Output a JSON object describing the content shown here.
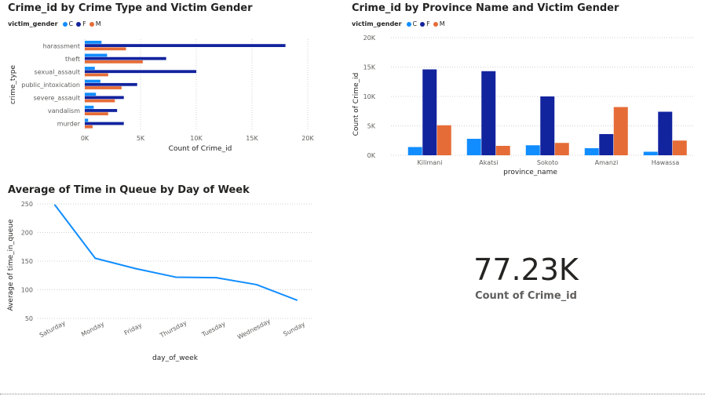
{
  "colors": {
    "C": "#118dff",
    "F": "#12239e",
    "M": "#e66c37",
    "line": "#118dff",
    "grid": "#d0d0d0",
    "text": "#605e5c"
  },
  "chart_data": [
    {
      "type": "bar",
      "orientation": "horizontal",
      "title": "Crime_id by Crime Type and Victim Gender",
      "legend_title": "victim_gender",
      "legend_position": "top-left",
      "xlabel": "Count of Crime_id",
      "ylabel": "crime_type",
      "xlim": [
        0,
        20000
      ],
      "xticks": [
        0,
        5000,
        10000,
        15000,
        20000
      ],
      "xtick_labels": [
        "0K",
        "5K",
        "10K",
        "15K",
        "20K"
      ],
      "grid": true,
      "categories": [
        "harassment",
        "theft",
        "sexual_assault",
        "public_intoxication",
        "severe_assault",
        "vandalism",
        "murder"
      ],
      "series": [
        {
          "name": "C",
          "values": [
            1500,
            2000,
            900,
            1400,
            1000,
            800,
            300
          ]
        },
        {
          "name": "F",
          "values": [
            18000,
            7300,
            10000,
            4700,
            3500,
            2900,
            3500
          ]
        },
        {
          "name": "M",
          "values": [
            3700,
            5200,
            2100,
            3300,
            2700,
            2100,
            700
          ]
        }
      ]
    },
    {
      "type": "bar",
      "orientation": "vertical",
      "title": "Crime_id by Province Name and Victim Gender",
      "legend_title": "victim_gender",
      "legend_position": "top-left",
      "xlabel": "province_name",
      "ylabel": "Count of Crime_id",
      "ylim": [
        0,
        20000
      ],
      "yticks": [
        0,
        5000,
        10000,
        15000,
        20000
      ],
      "ytick_labels": [
        "0K",
        "5K",
        "10K",
        "15K",
        "20K"
      ],
      "grid": true,
      "categories": [
        "Kilimani",
        "Akatsi",
        "Sokoto",
        "Amanzi",
        "Hawassa"
      ],
      "series": [
        {
          "name": "C",
          "values": [
            1400,
            2800,
            1700,
            1200,
            600
          ]
        },
        {
          "name": "F",
          "values": [
            14600,
            14300,
            10000,
            3600,
            7400
          ]
        },
        {
          "name": "M",
          "values": [
            5100,
            1600,
            2100,
            8200,
            2500
          ]
        }
      ]
    },
    {
      "type": "line",
      "title": "Average of Time in Queue by Day of Week",
      "xlabel": "day_of_week",
      "ylabel": "Average of time_in_queue",
      "ylim": [
        50,
        250
      ],
      "yticks": [
        50,
        100,
        150,
        200,
        250
      ],
      "ytick_labels": [
        "50",
        "100",
        "150",
        "200",
        "250"
      ],
      "grid": true,
      "categories": [
        "Saturday",
        "Monday",
        "Friday",
        "Thursday",
        "Tuesday",
        "Wednesday",
        "Sunday"
      ],
      "series": [
        {
          "values": [
            248,
            155,
            137,
            122,
            121,
            109,
            82
          ]
        }
      ]
    }
  ],
  "kpi": {
    "value": "77.23K",
    "label": "Count of Crime_id"
  }
}
